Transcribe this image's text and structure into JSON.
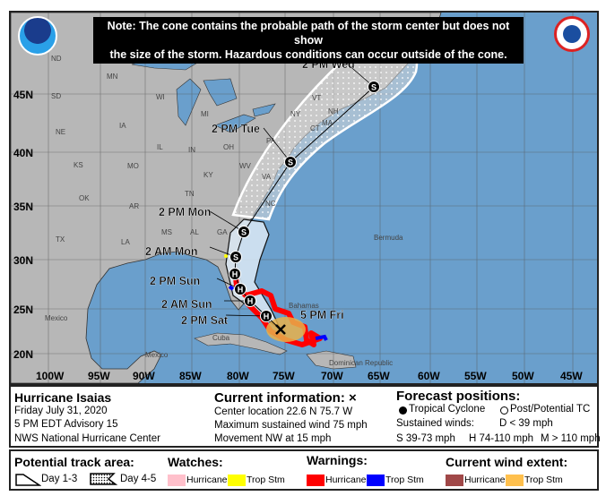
{
  "note": {
    "line1": "Note: The cone contains the probable path of the storm center but does not show",
    "line2": "the size of the storm. Hazardous conditions can occur outside of the cone."
  },
  "logos": {
    "left": "NOAA",
    "right": "National Weather Service"
  },
  "map": {
    "colors": {
      "land": "#b7b7b7",
      "ocean": "#6a9fcc",
      "cone": "#e9eef4",
      "hurricane_warning": "#ff0000",
      "trop_stm_warning": "#0000ff",
      "trop_stm_watch": "#ffff00",
      "hurricane_watch": "#ffc0cb",
      "trop_stm_wind": "#e7b04a"
    },
    "lon_labels": [
      "100W",
      "95W",
      "90W",
      "85W",
      "80W",
      "75W",
      "70W",
      "65W",
      "60W",
      "55W",
      "50W",
      "45W"
    ],
    "lat_labels": [
      "45N",
      "40N",
      "35N",
      "30N",
      "25N",
      "20N"
    ],
    "place_labels": [
      "ND",
      "MN",
      "SD",
      "WI",
      "MI",
      "NE",
      "IA",
      "IL",
      "IN",
      "OH",
      "PA",
      "NY",
      "VT",
      "NH",
      "MA",
      "CT",
      "KS",
      "MO",
      "KY",
      "WV",
      "VA",
      "OK",
      "AR",
      "TN",
      "NC",
      "TX",
      "MS",
      "AL",
      "GA",
      "LA",
      "Bermuda",
      "Mexico",
      "Cuba",
      "Bahamas",
      "Dominican Republic",
      "Mexico"
    ],
    "forecast_points": [
      {
        "label": "5 PM Fri",
        "type": "X"
      },
      {
        "label": "2 PM Sat",
        "type": "H"
      },
      {
        "label": "2 AM Sun",
        "type": "H"
      },
      {
        "label": "2 PM Sun",
        "type": "H"
      },
      {
        "label": "",
        "type": "H"
      },
      {
        "label": "2 AM Mon",
        "type": "S"
      },
      {
        "label": "2 PM Mon",
        "type": "S"
      },
      {
        "label": "2 PM Tue",
        "type": "S"
      },
      {
        "label": "2 PM Wed",
        "type": "S"
      }
    ]
  },
  "info": {
    "storm_name": "Hurricane Isaias",
    "date": "Friday July 31, 2020",
    "advisory": "5 PM EDT Advisory 15",
    "center": "NWS National Hurricane Center",
    "current_title": "Current information: ×",
    "location": "Center location 22.6 N 75.7 W",
    "max_wind": "Maximum sustained wind 75 mph",
    "movement": "Movement NW at 15 mph",
    "forecast_title": "Forecast positions:",
    "tropical_cyclone": "Tropical Cyclone",
    "post_tc": "Post/Potential TC",
    "sustained": "Sustained winds:",
    "d": "D < 39 mph",
    "s": "S 39-73 mph",
    "h": "H 74-110 mph",
    "m": "M > 110 mph"
  },
  "legend": {
    "track_title": "Potential track area:",
    "day13": "Day 1-3",
    "day45": "Day 4-5",
    "watches_title": "Watches:",
    "watch_hurricane": "Hurricane",
    "watch_trop": "Trop Stm",
    "warnings_title": "Warnings:",
    "warn_hurricane": "Hurricane",
    "warn_trop": "Trop Stm",
    "wind_title": "Current wind extent:",
    "wind_hurricane": "Hurricane",
    "wind_trop": "Trop Stm"
  }
}
